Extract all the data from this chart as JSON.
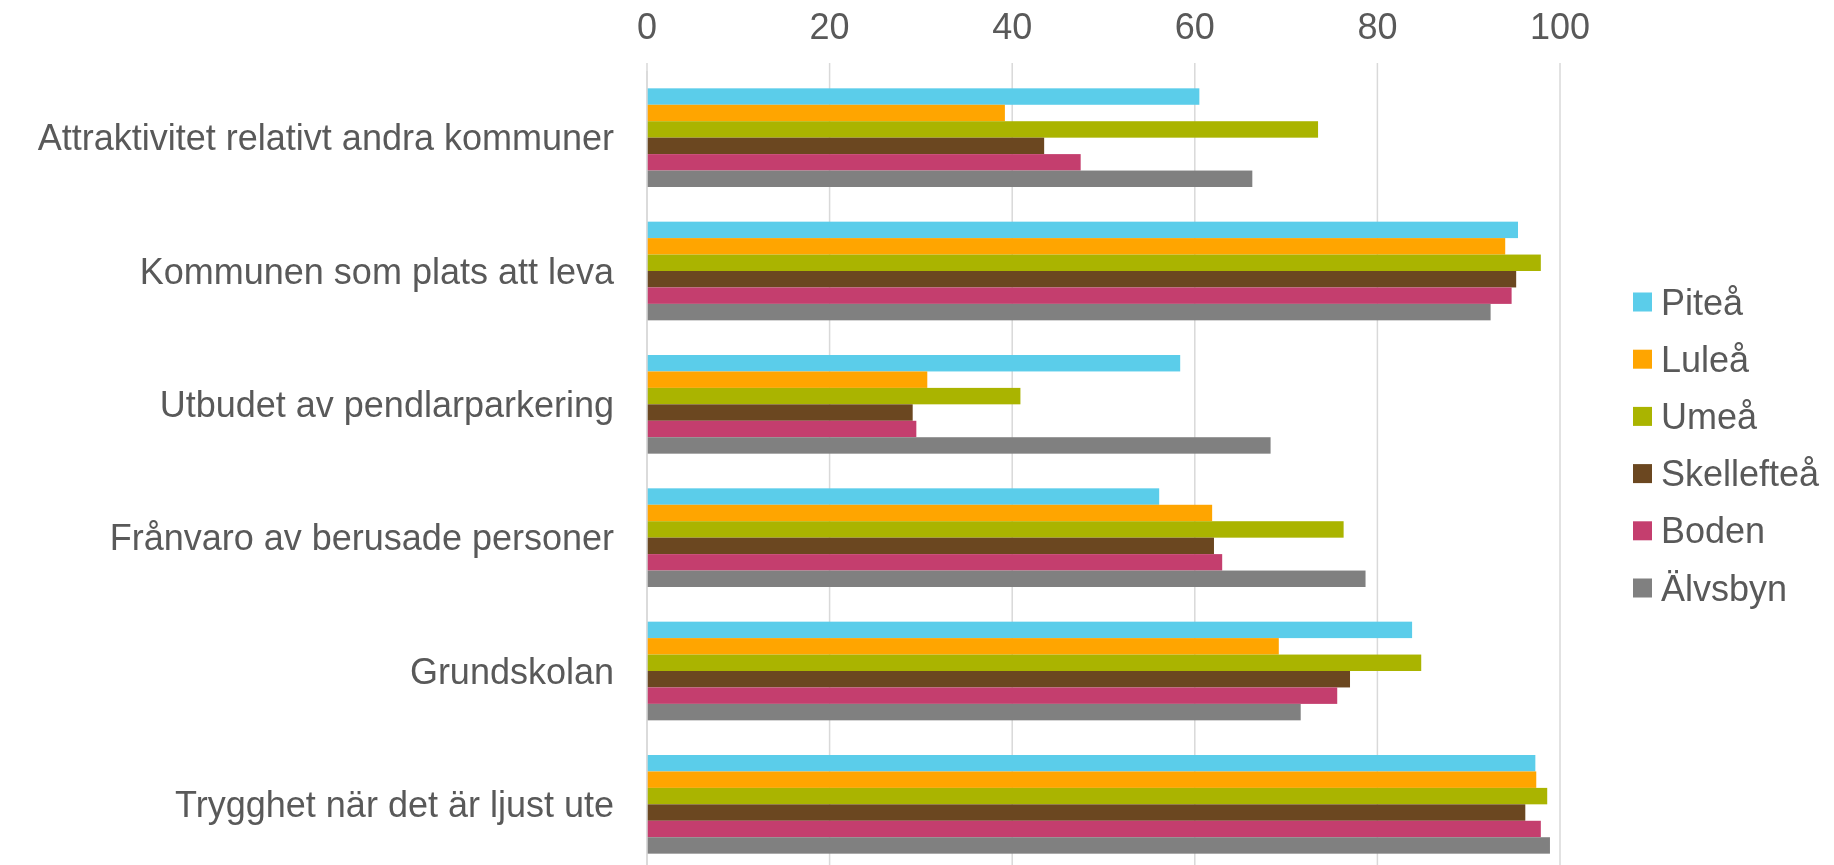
{
  "chart_data": {
    "type": "bar",
    "orientation": "horizontal",
    "categories": [
      "Attraktivitet relativt andra kommuner",
      "Kommunen som plats att leva",
      "Utbudet av pendlarparkering",
      "Frånvaro av berusade personer",
      "Grundskolan",
      "Trygghet när det är ljust ute"
    ],
    "series": [
      {
        "name": "Piteå",
        "color": "#5bcdea",
        "values": [
          60.5,
          95.4,
          58.4,
          56.1,
          83.8,
          97.3
        ]
      },
      {
        "name": "Luleå",
        "color": "#ffa500",
        "values": [
          39.2,
          94.0,
          30.7,
          61.9,
          69.2,
          97.4
        ]
      },
      {
        "name": "Umeå",
        "color": "#aab400",
        "values": [
          73.5,
          97.9,
          40.9,
          76.3,
          84.8,
          98.6
        ]
      },
      {
        "name": "Skellefteå",
        "color": "#6b4720",
        "values": [
          43.5,
          95.2,
          29.1,
          62.1,
          77.0,
          96.2
        ]
      },
      {
        "name": "Boden",
        "color": "#c43e6e",
        "values": [
          47.5,
          94.7,
          29.5,
          63.0,
          75.6,
          97.9
        ]
      },
      {
        "name": "Älvsbyn",
        "color": "#808080",
        "values": [
          66.3,
          92.4,
          68.3,
          78.7,
          71.6,
          98.9
        ]
      }
    ],
    "xlim": [
      0,
      100
    ],
    "xticks": [
      0,
      20,
      40,
      60,
      80,
      100
    ],
    "grid": "x",
    "legend": "right"
  }
}
